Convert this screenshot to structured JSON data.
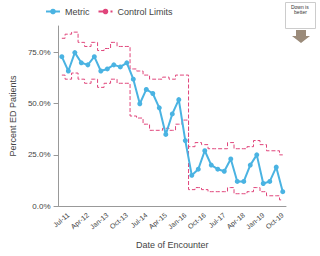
{
  "chart_data": {
    "type": "line",
    "x_label": "Date of Encounter",
    "y_label": "Percent ED Patients",
    "annotation": "Down is better",
    "categories": [
      null,
      "Jul-11",
      null,
      null,
      "Apr-12",
      null,
      null,
      "Jan-13",
      null,
      null,
      "Oct-13",
      null,
      null,
      "Jul-14",
      null,
      null,
      "Apr-15",
      null,
      null,
      "Jan-16",
      null,
      null,
      "Oct-16",
      null,
      null,
      "Jul-17",
      null,
      null,
      "Apr-18",
      null,
      null,
      "Jan-19",
      null,
      null,
      "Oct-19"
    ],
    "series": [
      {
        "name": "Metric",
        "color": "#4ab3e2",
        "marker": "circle",
        "line_style": "solid",
        "values": [
          73,
          66,
          75,
          70,
          69,
          73,
          66,
          67,
          69,
          68,
          70,
          62,
          50,
          57,
          55,
          48,
          35,
          45,
          52,
          32,
          15,
          18,
          27,
          20,
          18,
          17,
          23,
          12,
          12,
          20,
          25,
          11,
          12,
          19,
          7
        ]
      },
      {
        "name": "Control Limits",
        "color": "#e0457b",
        "marker": "none",
        "line_style": "dashed",
        "values": [
          82,
          84,
          85,
          80,
          78,
          80,
          76,
          77,
          80,
          78,
          78,
          67,
          66,
          64,
          62,
          62,
          63,
          62,
          64,
          64,
          29,
          31,
          30,
          28,
          28,
          28,
          31,
          28,
          28,
          29,
          32,
          30,
          27,
          27,
          25
        ]
      },
      {
        "name": "Control Limits",
        "color": "#e0457b",
        "marker": "none",
        "line_style": "dashed",
        "values": [
          64,
          62,
          65,
          62,
          60,
          62,
          58,
          60,
          62,
          60,
          60,
          44,
          43,
          40,
          37,
          37,
          38,
          37,
          40,
          42,
          8,
          9,
          8,
          7,
          7,
          7,
          9,
          6,
          6,
          7,
          9,
          7,
          5,
          5,
          3
        ]
      }
    ],
    "ylim": [
      0,
      88
    ],
    "yticks": [
      {
        "value": 0,
        "label": "0.0%"
      },
      {
        "value": 25,
        "label": "25.0%"
      },
      {
        "value": 50,
        "label": "50.0%"
      },
      {
        "value": 75,
        "label": "75.0%"
      }
    ],
    "grid": false,
    "legend": "top-left"
  }
}
